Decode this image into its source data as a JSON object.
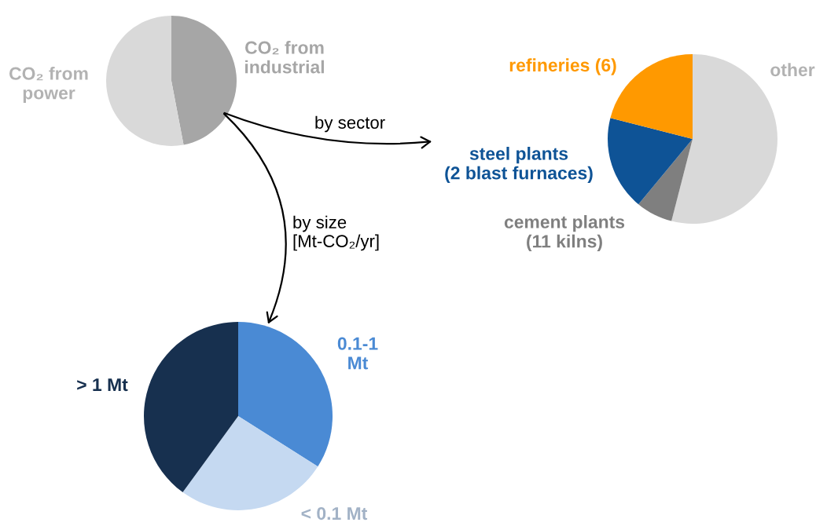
{
  "chart_data": [
    {
      "type": "pie",
      "categories": [
        "CO₂ from\nindustrial",
        "CO₂ from\npower"
      ],
      "values": [
        47,
        53
      ],
      "colors": [
        "#a6a6a6",
        "#d9d9d9"
      ],
      "annotations": [
        "by sector",
        "by size\n[Mt-CO₂/yr]"
      ]
    },
    {
      "type": "pie",
      "categories": [
        "other",
        "cement plants\n(11 kilns)",
        "steel plants\n(2 blast furnaces)",
        "refineries (6)"
      ],
      "values": [
        54,
        7,
        18,
        21
      ],
      "colors": [
        "#d9d9d9",
        "#7f7f7f",
        "#0e5396",
        "#ff9900"
      ]
    },
    {
      "type": "pie",
      "categories": [
        "0.1-1\nMt",
        "< 0.1 Mt",
        "> 1 Mt"
      ],
      "values": [
        34,
        26,
        40
      ],
      "colors": [
        "#4a8ad4",
        "#c5d9f1",
        "#17304f"
      ]
    }
  ]
}
